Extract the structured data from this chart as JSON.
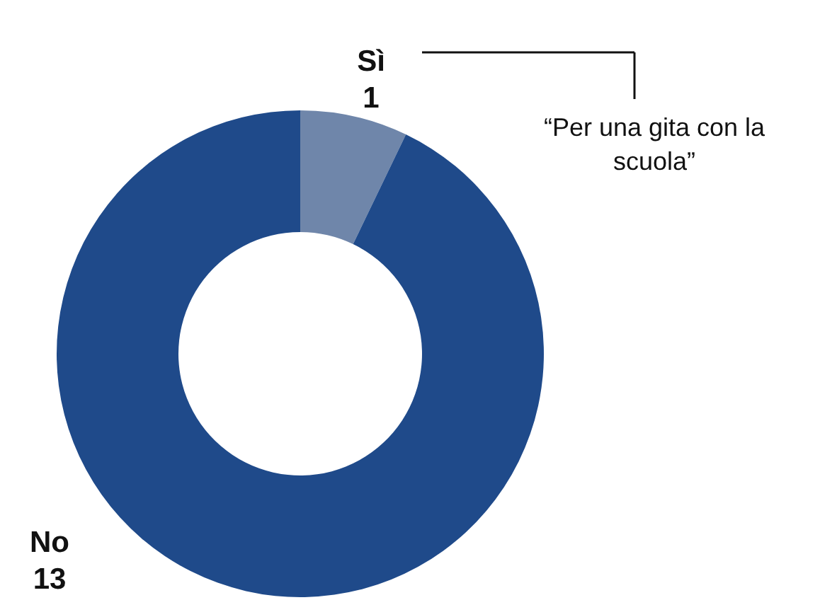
{
  "chart_data": {
    "type": "donut",
    "categories": [
      "Sì",
      "No"
    ],
    "values": [
      1,
      13
    ],
    "colors": [
      "#6f86aa",
      "#1f4a8a"
    ],
    "data_labels": true,
    "annotations": [
      "“Per una gita con la scuola”"
    ]
  }
}
